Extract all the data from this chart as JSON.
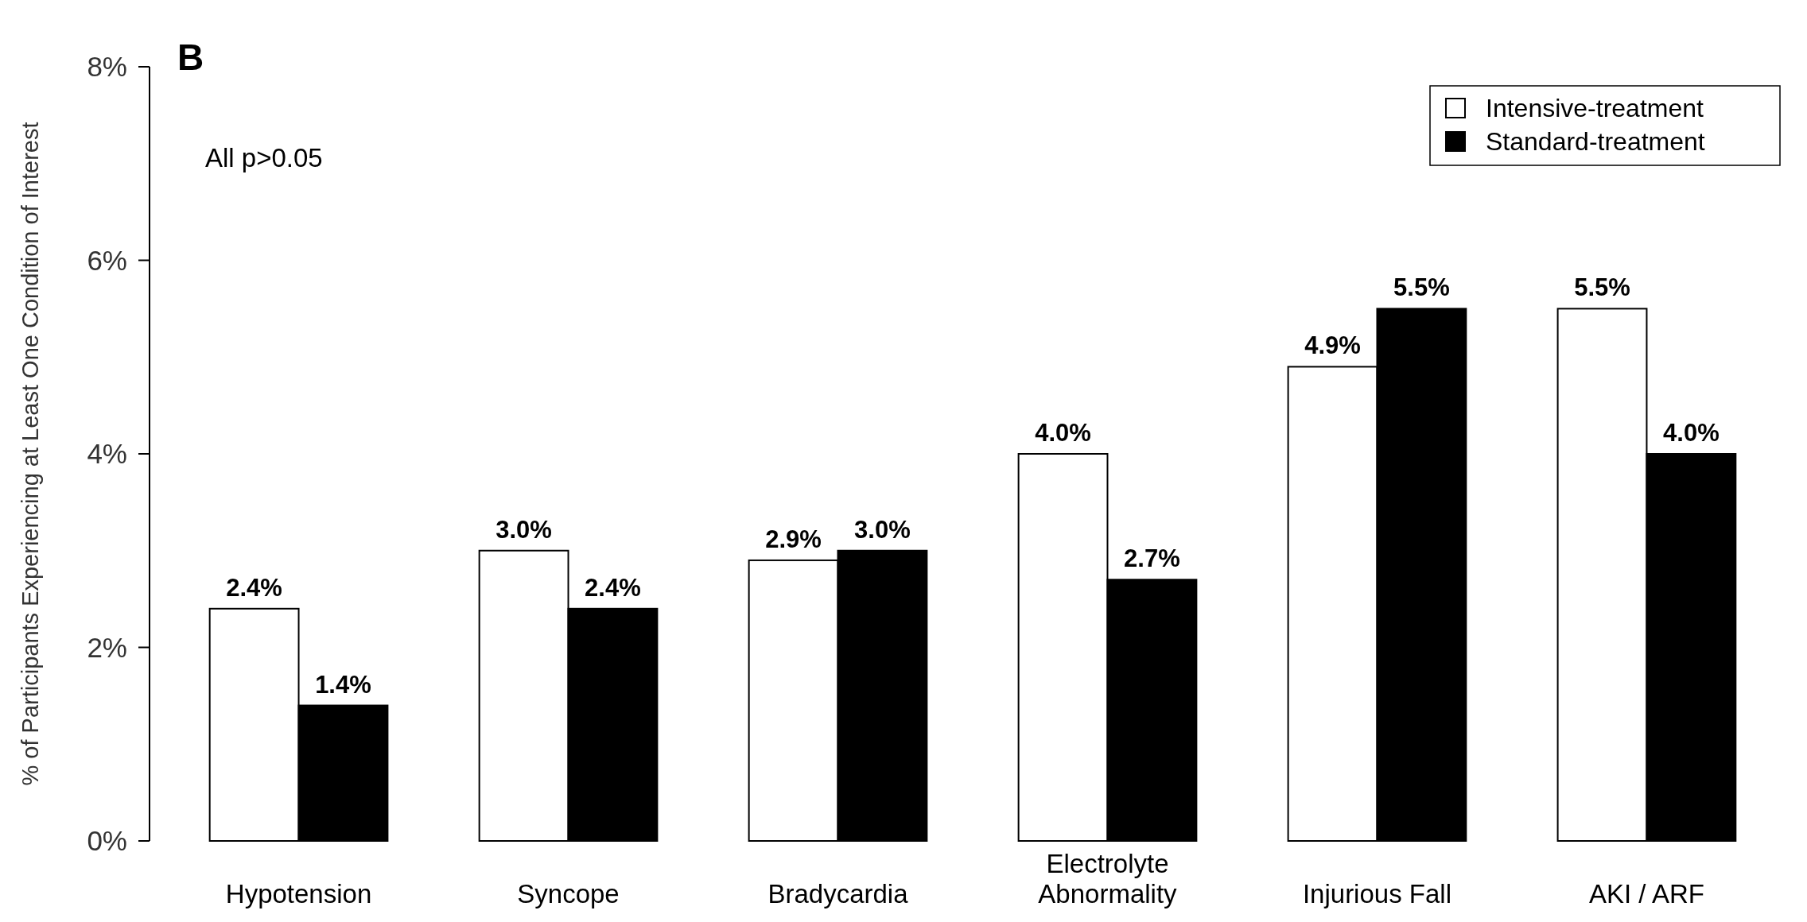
{
  "chart_data": {
    "type": "bar",
    "title": "B",
    "ylabel": "% of Participants Experiencing at Least One Condition of Interest",
    "categories": [
      "Hypotension",
      "Syncope",
      "Bradycardia",
      "Electrolyte Abnormality",
      "Injurious Fall",
      "AKI / ARF"
    ],
    "series": [
      {
        "name": "Intensive-treatment",
        "color": "#ffffff",
        "values": [
          2.4,
          3.0,
          2.9,
          4.0,
          4.9,
          5.5
        ],
        "value_labels": [
          "2.4%",
          "3.0%",
          "2.9%",
          "4.0%",
          "4.9%",
          "5.5%"
        ]
      },
      {
        "name": "Standard-treatment",
        "color": "#000000",
        "values": [
          1.4,
          2.4,
          3.0,
          2.7,
          5.5,
          4.0
        ],
        "value_labels": [
          "1.4%",
          "2.4%",
          "3.0%",
          "2.7%",
          "5.5%",
          "4.0%"
        ]
      }
    ],
    "ylim": [
      0,
      8
    ],
    "yticks": [
      {
        "value": 0,
        "label": "0%"
      },
      {
        "value": 2,
        "label": "2%"
      },
      {
        "value": 4,
        "label": "4%"
      },
      {
        "value": 6,
        "label": "6%"
      },
      {
        "value": 8,
        "label": "8%"
      }
    ],
    "annotations": [
      "All p>0.05"
    ],
    "legend": "top right",
    "grid": false
  }
}
